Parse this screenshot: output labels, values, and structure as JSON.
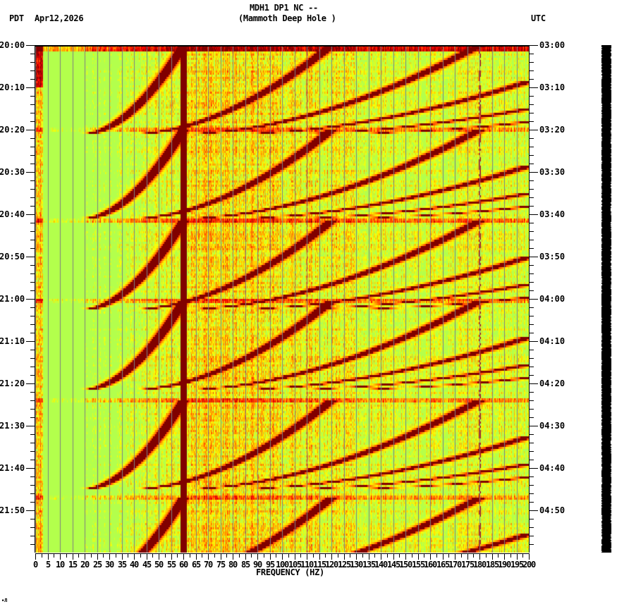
{
  "header": {
    "station_line": "MDH1 DP1 NC --",
    "location_line": "(Mammoth Deep Hole )",
    "left_timezone": "PDT",
    "date": "Apr12,2026",
    "right_timezone": "UTC"
  },
  "footer": {
    "mark": "∙Л"
  },
  "chart_data": {
    "type": "heatmap",
    "title": "MDH1 DP1 NC -- (Mammoth Deep Hole )",
    "subtitle": "Apr12,2026",
    "xlabel": "FREQUENCY (HZ)",
    "ylabel_left": "PDT",
    "ylabel_right": "UTC",
    "xlim": [
      0,
      200
    ],
    "x_tick_step": 5,
    "x_ticks": [
      "0",
      "5",
      "10",
      "15",
      "20",
      "25",
      "30",
      "35",
      "40",
      "45",
      "50",
      "55",
      "60",
      "65",
      "70",
      "75",
      "80",
      "85",
      "90",
      "95",
      "100",
      "105",
      "110",
      "115",
      "120",
      "125",
      "130",
      "135",
      "140",
      "145",
      "150",
      "155",
      "160",
      "165",
      "170",
      "175",
      "180",
      "185",
      "190",
      "195",
      "200"
    ],
    "y_ticks_left": [
      "20:00",
      "20:10",
      "20:20",
      "20:30",
      "20:40",
      "20:50",
      "21:00",
      "21:10",
      "21:20",
      "21:30",
      "21:40",
      "21:50"
    ],
    "y_ticks_right": [
      "03:00",
      "03:10",
      "03:20",
      "03:30",
      "03:40",
      "03:50",
      "04:00",
      "04:10",
      "04:20",
      "04:30",
      "04:40",
      "04:50"
    ],
    "duration_minutes": 120,
    "minor_tick_minutes": 2,
    "grid": {
      "vertical_every_hz": 5,
      "color": "#808080"
    },
    "colormap": "jet",
    "features": {
      "persistent_line_hz": 60,
      "weak_line_hz": 180,
      "low_freq_quiet_band_hz": [
        3,
        20
      ],
      "chirp_cycle_start_minutes": [
        0,
        20,
        41.5,
        60.5,
        84,
        107
      ],
      "chirp_cycle_length_minutes": 21,
      "chirp_start_hz": 20,
      "chirp_end_hz": 60,
      "chirp_harmonics": 6,
      "high_freq_roll_off_hz": 130
    },
    "amplitude_trace": {
      "color": "#000000",
      "position": "right-edge"
    }
  }
}
